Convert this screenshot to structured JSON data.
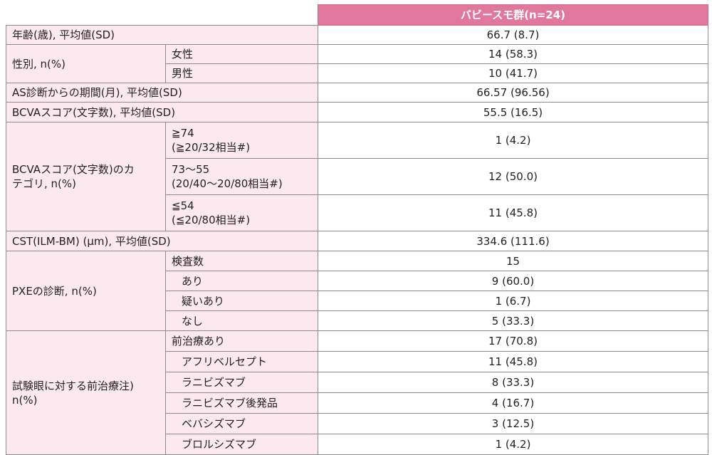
{
  "header": {
    "group": "バビースモ群(n=24)"
  },
  "rows": {
    "age": {
      "label": "年齢(歳), 平均値(SD)",
      "value": "66.7 (8.7)"
    },
    "sex": {
      "label": "性別, n(%)",
      "female": {
        "label": "女性",
        "value": "14 (58.3)"
      },
      "male": {
        "label": "男性",
        "value": "10 (41.7)"
      }
    },
    "as_period": {
      "label": "AS診断からの期間(月), 平均値(SD)",
      "value": "66.57 (96.56)"
    },
    "bcva_score": {
      "label": "BCVAスコア(文字数), 平均値(SD)",
      "value": "55.5 (16.5)"
    },
    "bcva_cat": {
      "label_line1": "BCVAスコア(文字数)のカ",
      "label_line2": "テゴリ, n(%)",
      "c1": {
        "line1": "≧74",
        "line2": "(≧20/32相当#)",
        "value": "1 (4.2)"
      },
      "c2": {
        "line1": "73～55",
        "line2": "(20/40～20/80相当#)",
        "value": "12 (50.0)"
      },
      "c3": {
        "line1": "≦54",
        "line2": "(≦20/80相当#)",
        "value": "11 (45.8)"
      }
    },
    "cst": {
      "label": "CST(ILM-BM) (μm), 平均値(SD)",
      "value": "334.6 (111.6)"
    },
    "pxe": {
      "label": "PXEの診断, n(%)",
      "tested": {
        "label": "検査数",
        "value": "15"
      },
      "yes": {
        "label": "あり",
        "value": "9 (60.0)"
      },
      "suspected": {
        "label": "疑いあり",
        "value": "1 (6.7)"
      },
      "no": {
        "label": "なし",
        "value": "5 (33.3)"
      }
    },
    "prior": {
      "label_line1": "試験眼に対する前治療注)",
      "label_line2": "n(%)",
      "any": {
        "label": "前治療あり",
        "value": "17 (70.8)"
      },
      "aflibercept": {
        "label": "アフリベルセプト",
        "value": "11 (45.8)"
      },
      "ranibizumab": {
        "label": "ラニビズマブ",
        "value": "8 (33.3)"
      },
      "ranibizumab_bs": {
        "label": "ラニビズマブ後発品",
        "value": "4 (16.7)"
      },
      "bevacizumab": {
        "label": "ベバシズマブ",
        "value": "3 (12.5)"
      },
      "brolucizumab": {
        "label": "ブロルシズマブ",
        "value": "1 (4.2)"
      }
    }
  }
}
